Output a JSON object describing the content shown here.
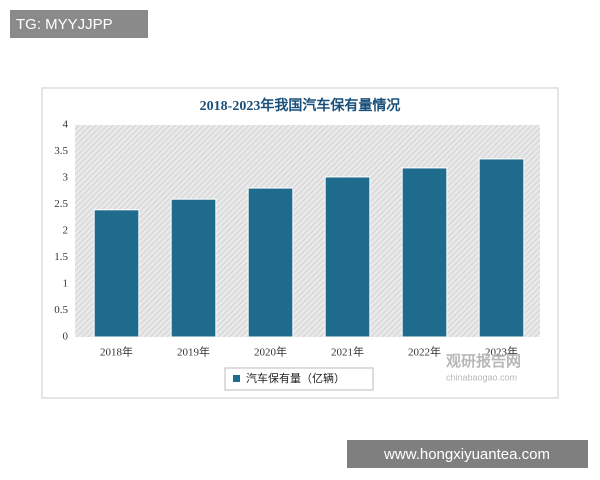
{
  "chart_data": {
    "type": "bar",
    "title": "2018-2023年我国汽车保有量情况",
    "categories": [
      "2018年",
      "2019年",
      "2020年",
      "2021年",
      "2022年",
      "2023年"
    ],
    "series": [
      {
        "name": "汽车保有量（亿辆）",
        "color": "#1f6b8e",
        "values": [
          2.4,
          2.6,
          2.81,
          3.02,
          3.19,
          3.36
        ]
      }
    ],
    "ylim": [
      0,
      4
    ],
    "yticks": [
      0,
      0.5,
      1,
      1.5,
      2,
      2.5,
      3,
      3.5,
      4
    ],
    "grid": false,
    "legend": "bottom"
  },
  "watermarks": {
    "top_left": "TG: MYYJJPP",
    "logo": "观研报告网",
    "logo_url": "chinabaogao.com",
    "bottom_right": "www.hongxiyuantea.com"
  }
}
